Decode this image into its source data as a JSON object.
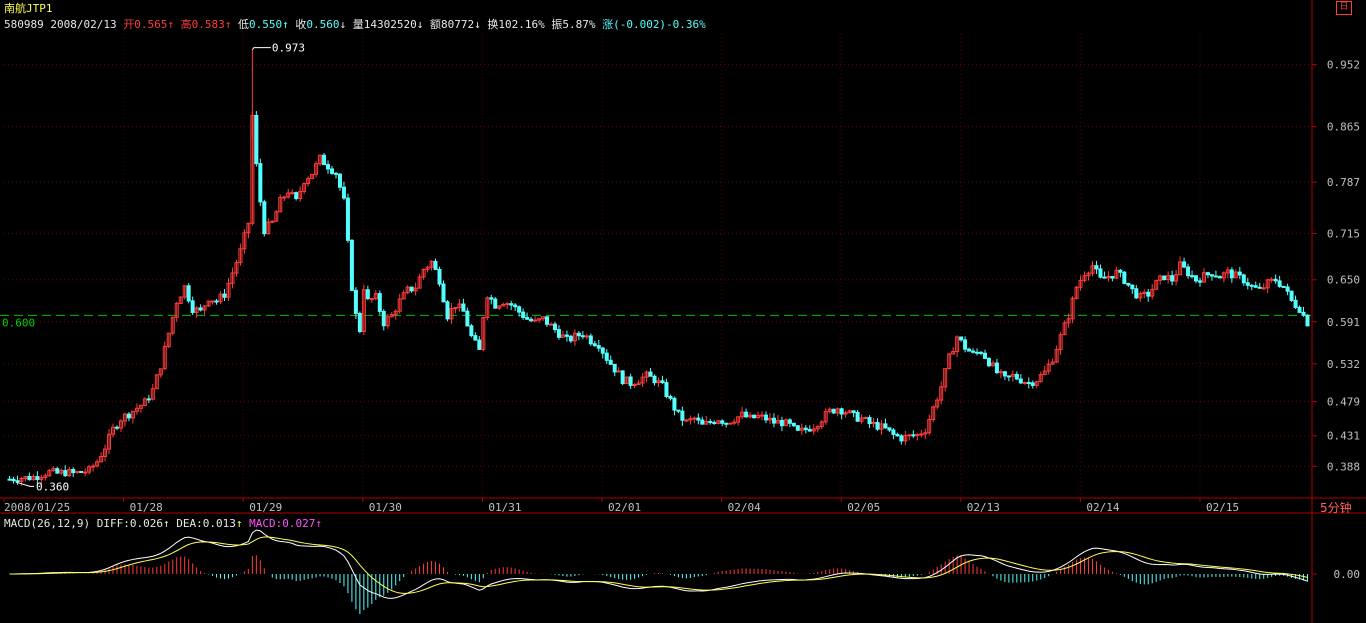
{
  "header": {
    "title": "南航JTP1",
    "code": "580989",
    "date": "2008/02/13",
    "open_label": "开",
    "open": "0.565",
    "open_arrow": "↑",
    "high_label": "高",
    "high": "0.583",
    "high_arrow": "↑",
    "low_label": "低",
    "low": "0.550",
    "low_arrow": "↑",
    "close_label": "收",
    "close": "0.560",
    "close_arrow": "↓",
    "volume_label": "量",
    "volume": "14302520",
    "volume_arrow": "↓",
    "amount_label": "额",
    "amount": "80772",
    "amount_arrow": "↓",
    "turnover_label": "换",
    "turnover": "102.16%",
    "amplitude_label": "振",
    "amplitude": "5.87%",
    "change_label": "涨",
    "change": "(-0.002)-0.36%"
  },
  "controls": {
    "zoom_icon": "日",
    "period": "5分钟"
  },
  "macd": {
    "label": "MACD(26,12,9)",
    "diff_label": "DIFF:",
    "diff": "0.026",
    "diff_arrow": "↑",
    "dea_label": "DEA:",
    "dea": "0.013",
    "dea_arrow": "↑",
    "macd_label": "MACD:",
    "macd": "0.027",
    "macd_arrow": "↑",
    "zero_label": "0.00"
  },
  "colors": {
    "up": "#ff3b3b",
    "down": "#54ffff",
    "axis": "#b00000",
    "diff": "#ffffff",
    "dea": "#ffff54",
    "ref": "#00c000"
  },
  "chart_data": {
    "type": "candlestick",
    "x_tick_labels": [
      "2008/01/25",
      "01/28",
      "01/29",
      "01/30",
      "01/31",
      "02/01",
      "02/04",
      "02/05",
      "02/13",
      "02/14",
      "02/15"
    ],
    "y_tick_labels": [
      "0.952",
      "0.865",
      "0.787",
      "0.715",
      "0.650",
      "0.591",
      "0.532",
      "0.479",
      "0.431",
      "0.388"
    ],
    "ylim": [
      0.345,
      0.995
    ],
    "reference_line": 0.6,
    "reference_label": "0.600",
    "max_annotation": "0.973",
    "min_annotation": "0.360",
    "close_path": [
      [
        0,
        0.37
      ],
      [
        2,
        0.372
      ],
      [
        4,
        0.372
      ],
      [
        6,
        0.373
      ],
      [
        8,
        0.377
      ],
      [
        10,
        0.38
      ],
      [
        12,
        0.378
      ],
      [
        14,
        0.38
      ],
      [
        16,
        0.378
      ],
      [
        18,
        0.38
      ],
      [
        20,
        0.382
      ],
      [
        22,
        0.395
      ],
      [
        24,
        0.415
      ],
      [
        26,
        0.44
      ],
      [
        28,
        0.455
      ],
      [
        30,
        0.462
      ],
      [
        32,
        0.47
      ],
      [
        34,
        0.478
      ],
      [
        36,
        0.495
      ],
      [
        38,
        0.53
      ],
      [
        40,
        0.575
      ],
      [
        42,
        0.62
      ],
      [
        44,
        0.64
      ],
      [
        46,
        0.61
      ],
      [
        48,
        0.605
      ],
      [
        50,
        0.625
      ],
      [
        52,
        0.62
      ],
      [
        54,
        0.63
      ],
      [
        56,
        0.66
      ],
      [
        58,
        0.69
      ],
      [
        60,
        0.73
      ],
      [
        61,
        0.88
      ],
      [
        62,
        0.81
      ],
      [
        63,
        0.76
      ],
      [
        64,
        0.72
      ],
      [
        66,
        0.73
      ],
      [
        68,
        0.76
      ],
      [
        70,
        0.775
      ],
      [
        72,
        0.76
      ],
      [
        74,
        0.79
      ],
      [
        76,
        0.8
      ],
      [
        78,
        0.82
      ],
      [
        80,
        0.81
      ],
      [
        82,
        0.8
      ],
      [
        84,
        0.76
      ],
      [
        85,
        0.7
      ],
      [
        86,
        0.64
      ],
      [
        87,
        0.6
      ],
      [
        88,
        0.58
      ],
      [
        89,
        0.64
      ],
      [
        90,
        0.62
      ],
      [
        92,
        0.625
      ],
      [
        94,
        0.59
      ],
      [
        96,
        0.6
      ],
      [
        98,
        0.62
      ],
      [
        100,
        0.635
      ],
      [
        102,
        0.64
      ],
      [
        104,
        0.665
      ],
      [
        106,
        0.675
      ],
      [
        108,
        0.65
      ],
      [
        110,
        0.6
      ],
      [
        112,
        0.615
      ],
      [
        114,
        0.605
      ],
      [
        116,
        0.57
      ],
      [
        118,
        0.55
      ],
      [
        119,
        0.6
      ],
      [
        120,
        0.63
      ],
      [
        122,
        0.615
      ],
      [
        124,
        0.62
      ],
      [
        126,
        0.615
      ],
      [
        128,
        0.605
      ],
      [
        130,
        0.595
      ],
      [
        132,
        0.59
      ],
      [
        134,
        0.595
      ],
      [
        136,
        0.585
      ],
      [
        138,
        0.575
      ],
      [
        140,
        0.565
      ],
      [
        142,
        0.57
      ],
      [
        144,
        0.575
      ],
      [
        146,
        0.565
      ],
      [
        148,
        0.56
      ],
      [
        150,
        0.54
      ],
      [
        152,
        0.525
      ],
      [
        154,
        0.51
      ],
      [
        156,
        0.505
      ],
      [
        158,
        0.51
      ],
      [
        160,
        0.515
      ],
      [
        162,
        0.51
      ],
      [
        164,
        0.5
      ],
      [
        166,
        0.48
      ],
      [
        168,
        0.46
      ],
      [
        170,
        0.45
      ],
      [
        172,
        0.455
      ],
      [
        174,
        0.445
      ],
      [
        176,
        0.45
      ],
      [
        178,
        0.455
      ],
      [
        180,
        0.45
      ],
      [
        182,
        0.455
      ],
      [
        184,
        0.46
      ],
      [
        186,
        0.455
      ],
      [
        188,
        0.458
      ],
      [
        190,
        0.455
      ],
      [
        192,
        0.45
      ],
      [
        194,
        0.45
      ],
      [
        196,
        0.445
      ],
      [
        198,
        0.435
      ],
      [
        200,
        0.44
      ],
      [
        202,
        0.445
      ],
      [
        204,
        0.455
      ],
      [
        206,
        0.465
      ],
      [
        208,
        0.47
      ],
      [
        210,
        0.465
      ],
      [
        212,
        0.458
      ],
      [
        214,
        0.455
      ],
      [
        216,
        0.448
      ],
      [
        218,
        0.445
      ],
      [
        220,
        0.44
      ],
      [
        222,
        0.432
      ],
      [
        224,
        0.428
      ],
      [
        226,
        0.43
      ],
      [
        228,
        0.432
      ],
      [
        230,
        0.44
      ],
      [
        232,
        0.47
      ],
      [
        234,
        0.5
      ],
      [
        236,
        0.54
      ],
      [
        238,
        0.57
      ],
      [
        240,
        0.555
      ],
      [
        242,
        0.545
      ],
      [
        244,
        0.55
      ],
      [
        246,
        0.535
      ],
      [
        248,
        0.52
      ],
      [
        250,
        0.51
      ],
      [
        252,
        0.515
      ],
      [
        254,
        0.51
      ],
      [
        256,
        0.505
      ],
      [
        258,
        0.51
      ],
      [
        260,
        0.52
      ],
      [
        262,
        0.54
      ],
      [
        264,
        0.57
      ],
      [
        266,
        0.6
      ],
      [
        268,
        0.64
      ],
      [
        270,
        0.66
      ],
      [
        272,
        0.67
      ],
      [
        274,
        0.65
      ],
      [
        276,
        0.655
      ],
      [
        278,
        0.66
      ],
      [
        280,
        0.65
      ],
      [
        282,
        0.635
      ],
      [
        284,
        0.625
      ],
      [
        286,
        0.63
      ],
      [
        288,
        0.645
      ],
      [
        290,
        0.655
      ],
      [
        292,
        0.65
      ],
      [
        294,
        0.67
      ],
      [
        296,
        0.66
      ],
      [
        298,
        0.65
      ],
      [
        300,
        0.655
      ],
      [
        302,
        0.66
      ],
      [
        304,
        0.655
      ],
      [
        306,
        0.66
      ],
      [
        308,
        0.655
      ],
      [
        310,
        0.65
      ],
      [
        312,
        0.64
      ],
      [
        314,
        0.635
      ],
      [
        316,
        0.645
      ],
      [
        318,
        0.65
      ],
      [
        320,
        0.64
      ],
      [
        322,
        0.62
      ],
      [
        324,
        0.61
      ],
      [
        326,
        0.59
      ]
    ]
  }
}
